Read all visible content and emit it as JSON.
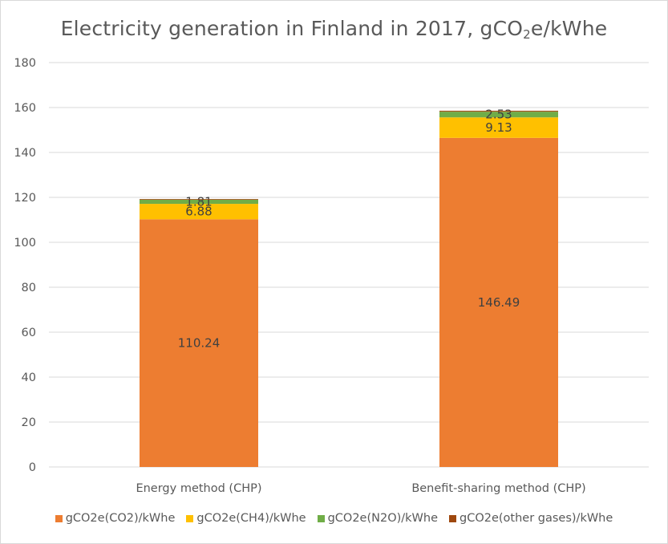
{
  "chart_data": {
    "type": "bar",
    "stacked": true,
    "title_main": "Electricity generation in Finland in 2017, gCO",
    "title_sub": "2",
    "title_tail": "e/kWhe",
    "categories": [
      "Energy method (CHP)",
      "Benefit-sharing method (CHP)"
    ],
    "series": [
      {
        "name": "gCO2e(CO2)/kWhe",
        "values": [
          110.24,
          146.49
        ],
        "color": "#ed7d31",
        "labels": [
          "110.24",
          "146.49"
        ]
      },
      {
        "name": "gCO2e(CH4)/kWhe",
        "values": [
          6.88,
          9.13
        ],
        "color": "#ffc000",
        "labels": [
          "6.88",
          "9.13"
        ]
      },
      {
        "name": "gCO2e(N2O)/kWhe",
        "values": [
          1.81,
          2.53
        ],
        "color": "#70ad47",
        "labels": [
          "1.81",
          "2.53"
        ]
      },
      {
        "name": "gCO2e(other gases)/kWhe",
        "values": [
          0.3,
          0.4
        ],
        "color": "#9e480e",
        "labels": [
          "",
          ""
        ]
      }
    ],
    "ylim": [
      0,
      180
    ],
    "yticks": [
      0,
      20,
      40,
      60,
      80,
      100,
      120,
      140,
      160,
      180
    ],
    "grid": true,
    "legend": "bottom"
  }
}
